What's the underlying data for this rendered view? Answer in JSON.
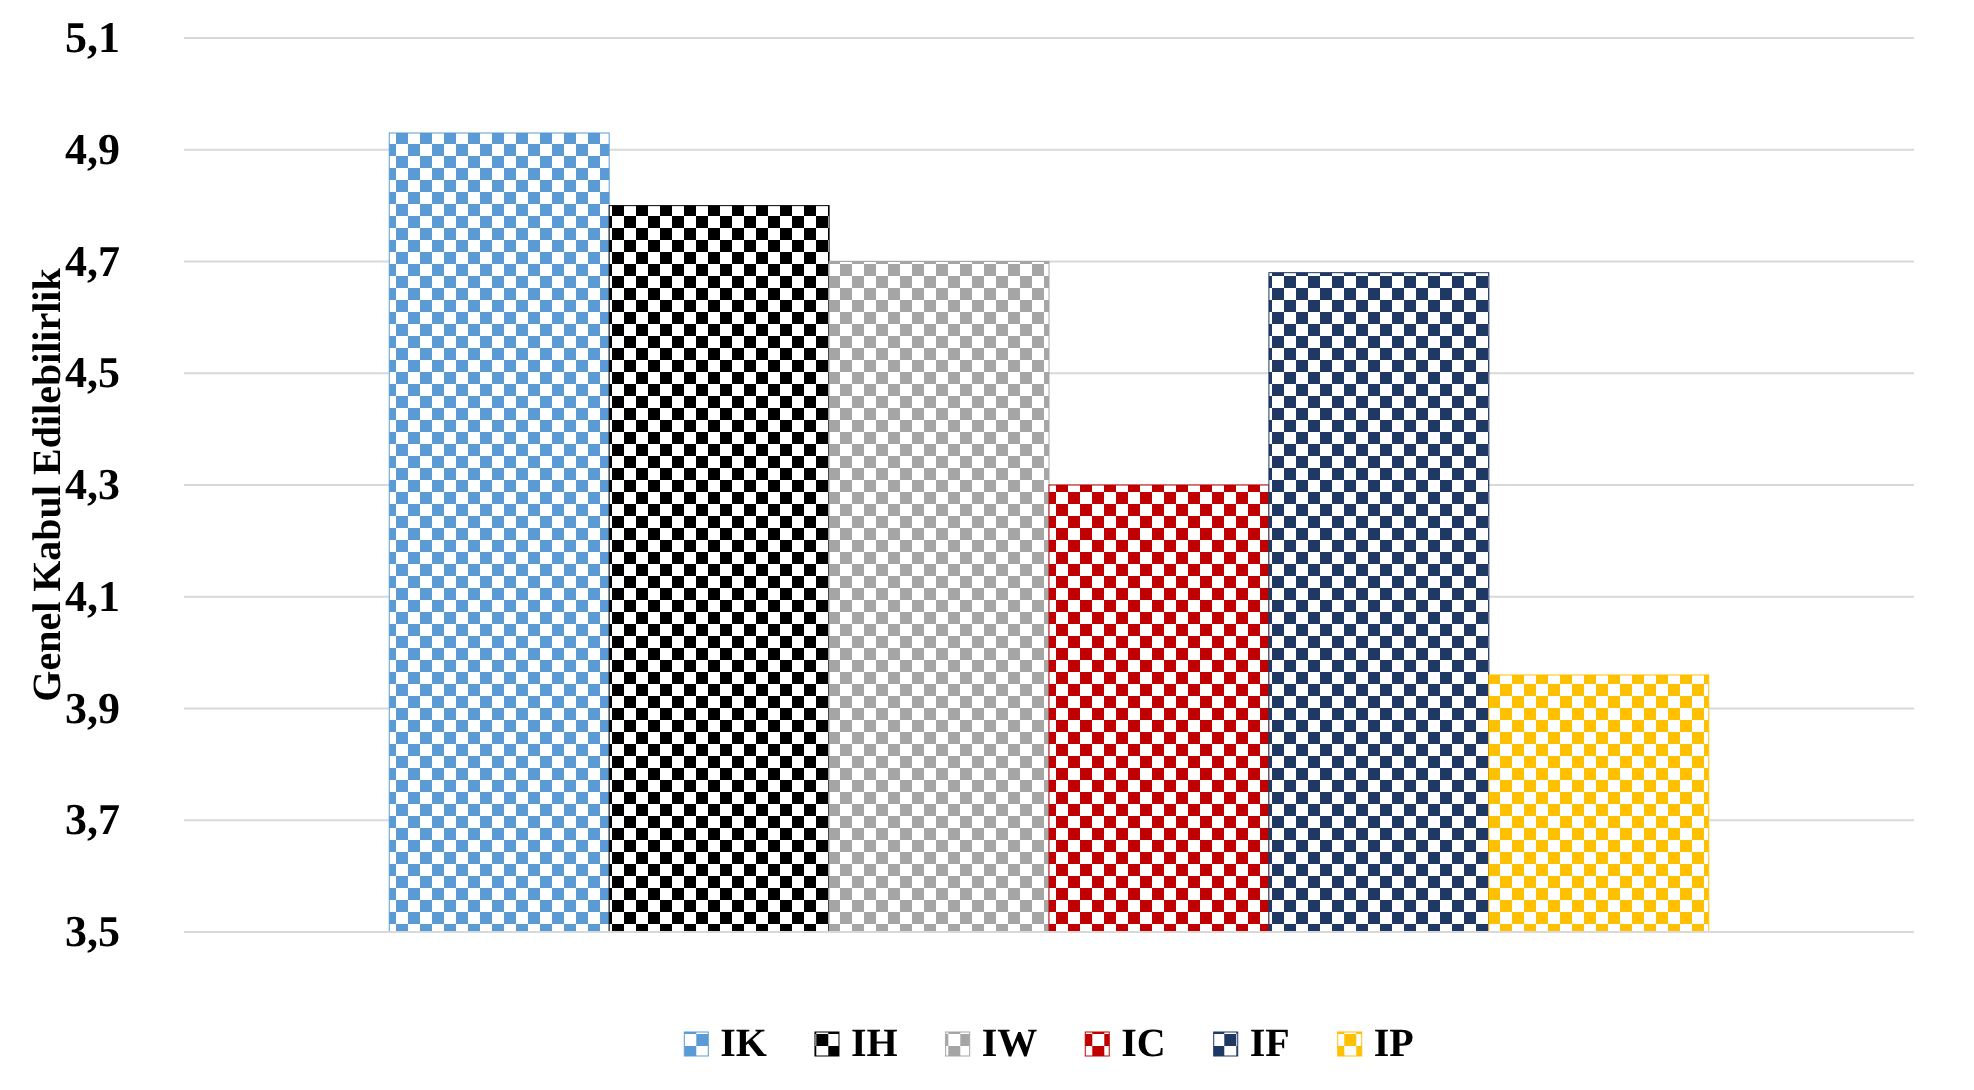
{
  "chart_data": {
    "type": "bar",
    "ylabel": "Genel Kabul Edilebilirlik",
    "categories": [
      null
    ],
    "series": [
      {
        "name": "IK",
        "color": "#5b9bd5",
        "values": [
          4.93
        ]
      },
      {
        "name": "IH",
        "color": "#000000",
        "values": [
          4.8
        ]
      },
      {
        "name": "IW",
        "color": "#a5a5a5",
        "values": [
          4.7
        ]
      },
      {
        "name": "IC",
        "color": "#c00000",
        "values": [
          4.3
        ]
      },
      {
        "name": "IF",
        "color": "#1f3864",
        "values": [
          4.68
        ]
      },
      {
        "name": "IP",
        "color": "#ffc000",
        "values": [
          3.96
        ]
      }
    ],
    "ylim": [
      3.5,
      5.1
    ],
    "yticks": [
      {
        "value": 3.5,
        "label": "3,5"
      },
      {
        "value": 3.7,
        "label": "3,7"
      },
      {
        "value": 3.9,
        "label": "3,9"
      },
      {
        "value": 4.1,
        "label": "4,1"
      },
      {
        "value": 4.3,
        "label": "4,3"
      },
      {
        "value": 4.5,
        "label": "4,5"
      },
      {
        "value": 4.7,
        "label": "4,7"
      },
      {
        "value": 4.9,
        "label": "4,9"
      },
      {
        "value": 5.1,
        "label": "5,1"
      }
    ],
    "grid": "y",
    "legend": "bottom"
  }
}
